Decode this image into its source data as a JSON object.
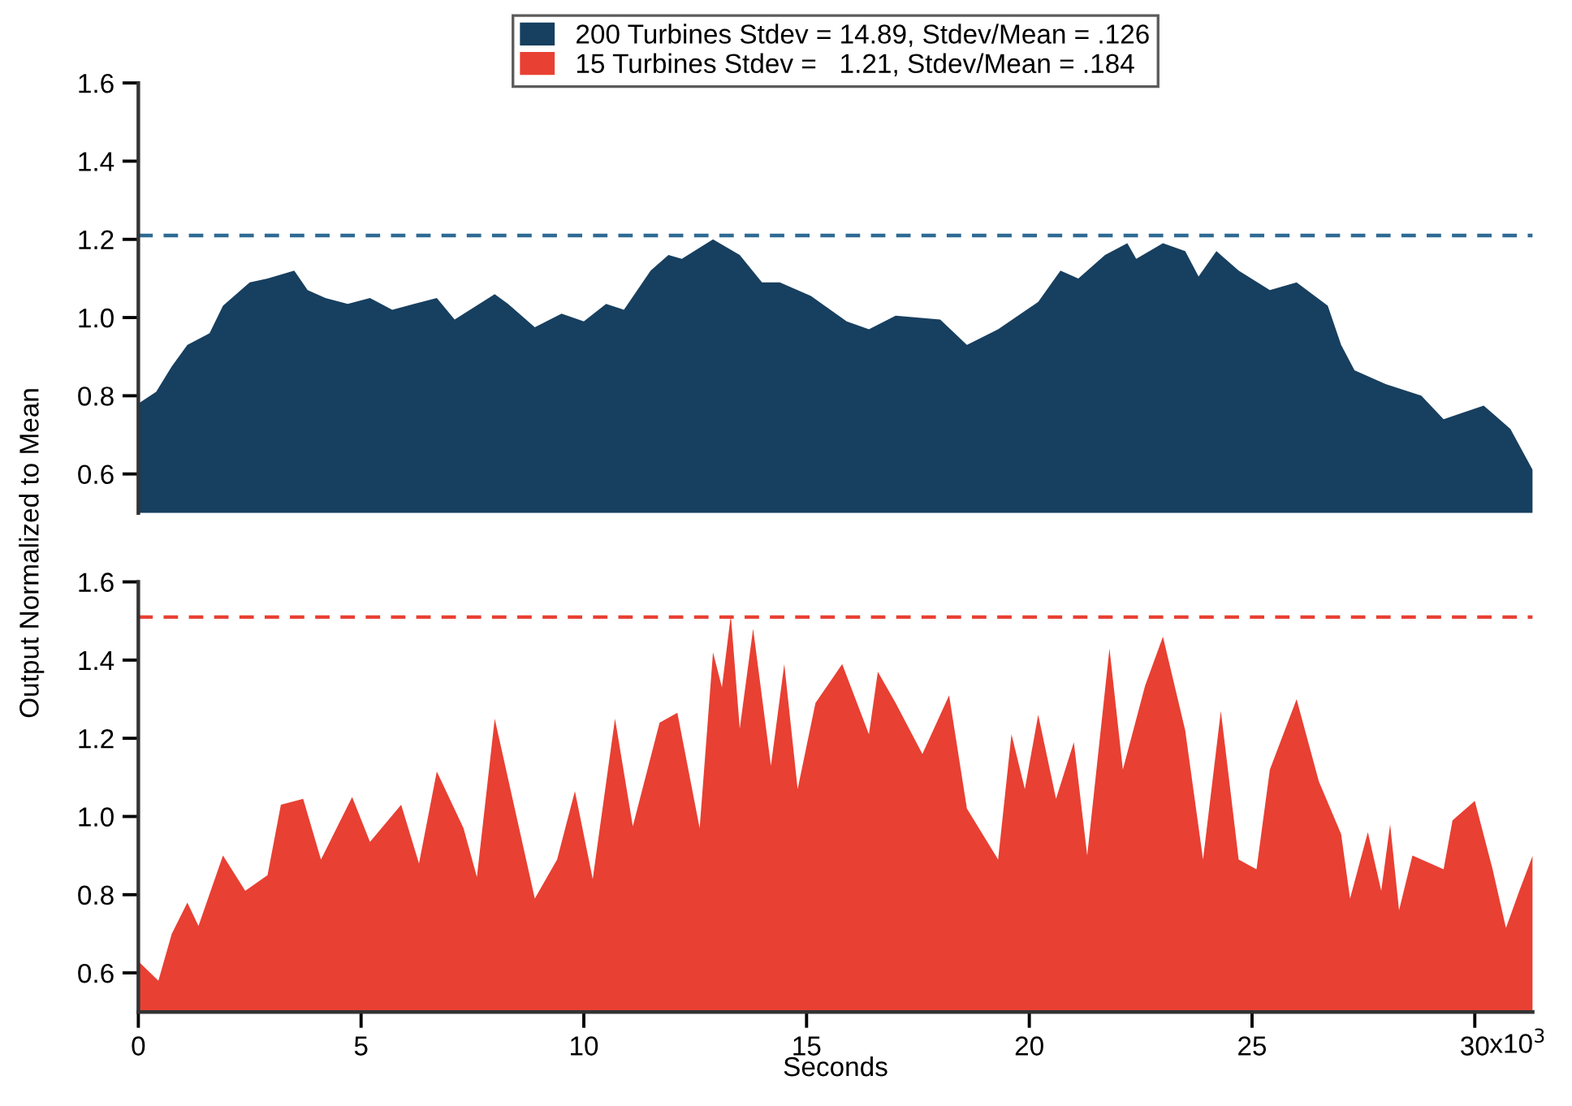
{
  "chart_data": [
    {
      "type": "area",
      "ylabel": "Output Normalized to Mean",
      "legend": "top",
      "tick_labels": "y",
      "xlim": [
        0,
        31.3
      ],
      "ylim": [
        0.5,
        1.6
      ],
      "yticks": [
        0.6,
        0.8,
        {
          "value": 1.0,
          "label": "1.0"
        },
        1.2,
        1.4,
        1.6
      ],
      "ref_lines": [
        {
          "axis": "y",
          "value": 1.21,
          "color": "#2f6a94",
          "line_style": "dashed"
        }
      ],
      "series": [
        {
          "name": "200 Turbines Stdev = 14.89, Stdev/Mean = .126",
          "color": "#173f5f",
          "x": [
            0,
            0.4,
            0.75,
            1.1,
            1.6,
            1.9,
            2.5,
            2.9,
            3.5,
            3.8,
            4.2,
            4.7,
            5.2,
            5.7,
            6.7,
            7.1,
            8.0,
            8.3,
            8.9,
            9.5,
            10.0,
            10.5,
            10.9,
            11.5,
            11.9,
            12.2,
            12.9,
            13.5,
            14.0,
            14.4,
            15.1,
            15.9,
            16.4,
            17.0,
            18.0,
            18.6,
            19.3,
            20.2,
            20.7,
            21.1,
            21.7,
            22.2,
            22.4,
            23.0,
            23.5,
            23.8,
            24.2,
            24.7,
            25.4,
            26.0,
            26.7,
            27.0,
            27.3,
            28.0,
            28.8,
            29.3,
            30.2,
            30.8,
            31.3
          ],
          "values": [
            0.78,
            0.81,
            0.875,
            0.93,
            0.96,
            1.03,
            1.09,
            1.1,
            1.12,
            1.07,
            1.05,
            1.035,
            1.05,
            1.02,
            1.05,
            0.995,
            1.06,
            1.035,
            0.975,
            1.01,
            0.99,
            1.035,
            1.02,
            1.12,
            1.16,
            1.15,
            1.2,
            1.16,
            1.09,
            1.09,
            1.055,
            0.99,
            0.97,
            1.005,
            0.995,
            0.93,
            0.97,
            1.04,
            1.12,
            1.1,
            1.16,
            1.19,
            1.15,
            1.19,
            1.17,
            1.105,
            1.17,
            1.12,
            1.07,
            1.09,
            1.03,
            0.93,
            0.865,
            0.83,
            0.8,
            0.74,
            0.775,
            0.715,
            0.61
          ]
        }
      ]
    },
    {
      "type": "area",
      "xlabel": "Seconds",
      "xlim": [
        0,
        31.3
      ],
      "ylim": [
        0.5,
        1.6
      ],
      "yticks": [
        0.6,
        0.8,
        {
          "value": 1.0,
          "label": "1.0"
        },
        1.2,
        1.4,
        1.6
      ],
      "xticks": [
        0,
        5,
        10,
        15,
        20,
        25,
        30
      ],
      "annotations": [
        "x10$^{3}$"
      ],
      "ref_lines": [
        {
          "axis": "y",
          "value": 1.51,
          "color": "#e84033",
          "line_style": "dashed"
        }
      ],
      "series": [
        {
          "name": "15 Turbines Stdev =   1.21, Stdev/Mean = .184",
          "color": "#e84033",
          "x": [
            0,
            0.45,
            0.75,
            1.1,
            1.35,
            1.9,
            2.4,
            2.9,
            3.2,
            3.7,
            4.1,
            4.8,
            5.2,
            5.9,
            6.3,
            6.7,
            7.3,
            7.6,
            8.0,
            8.9,
            9.4,
            9.8,
            10.2,
            10.7,
            11.1,
            11.7,
            12.1,
            12.6,
            12.9,
            13.1,
            13.3,
            13.5,
            13.8,
            14.2,
            14.5,
            14.8,
            15.2,
            15.8,
            16.4,
            16.6,
            17.0,
            17.6,
            18.2,
            18.6,
            19.3,
            19.6,
            19.9,
            20.2,
            20.6,
            21.0,
            21.3,
            21.8,
            22.1,
            22.6,
            23.0,
            23.5,
            23.9,
            24.3,
            24.7,
            25.1,
            25.4,
            26.0,
            26.5,
            27.0,
            27.2,
            27.6,
            27.9,
            28.1,
            28.3,
            28.6,
            29.3,
            29.5,
            30.0,
            30.4,
            30.7,
            31.0,
            31.3
          ],
          "values": [
            0.63,
            0.58,
            0.7,
            0.78,
            0.72,
            0.9,
            0.81,
            0.85,
            1.03,
            1.045,
            0.89,
            1.05,
            0.935,
            1.03,
            0.88,
            1.115,
            0.97,
            0.845,
            1.25,
            0.79,
            0.89,
            1.065,
            0.84,
            1.25,
            0.975,
            1.24,
            1.265,
            0.97,
            1.42,
            1.33,
            1.515,
            1.225,
            1.48,
            1.13,
            1.39,
            1.07,
            1.29,
            1.39,
            1.21,
            1.37,
            1.29,
            1.16,
            1.31,
            1.02,
            0.89,
            1.21,
            1.07,
            1.26,
            1.045,
            1.19,
            0.9,
            1.43,
            1.12,
            1.335,
            1.46,
            1.22,
            0.89,
            1.27,
            0.89,
            0.865,
            1.12,
            1.3,
            1.09,
            0.955,
            0.79,
            0.96,
            0.81,
            0.98,
            0.76,
            0.9,
            0.865,
            0.99,
            1.04,
            0.865,
            0.715,
            0.81,
            0.9
          ]
        }
      ]
    }
  ]
}
